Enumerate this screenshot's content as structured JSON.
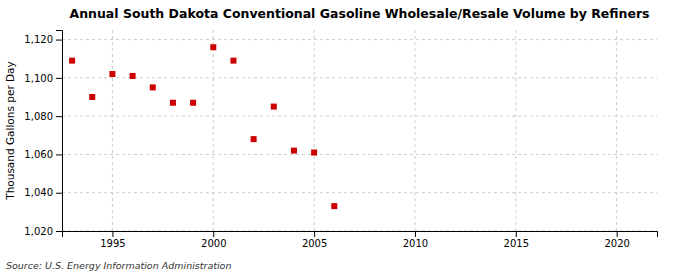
{
  "chart_data": {
    "type": "scatter",
    "title": "Annual South Dakota Conventional Gasoline Wholesale/Resale Volume by Refiners",
    "ylabel": "Thousand Gallons per Day",
    "annotations": [
      "Source: U.S. Energy Information Administration"
    ],
    "x": [
      1993,
      1994,
      1995,
      1996,
      1997,
      1998,
      1999,
      2000,
      2001,
      2002,
      2003,
      2004,
      2005,
      2006
    ],
    "values": [
      1109,
      1090,
      1102,
      1101,
      1095,
      1087,
      1087,
      1116,
      1109,
      1068,
      1085,
      1062,
      1061,
      1033
    ],
    "color": "#cc0000",
    "marker": "square",
    "xlim": [
      1992.5,
      2022
    ],
    "xticks": [
      1995,
      2000,
      2005,
      2010,
      2015,
      2020
    ],
    "ylim": [
      1020,
      1125
    ],
    "yticks": [
      {
        "value": 1020,
        "label": "1,020"
      },
      {
        "value": 1040,
        "label": "1,040"
      },
      {
        "value": 1060,
        "label": "1,060"
      },
      {
        "value": 1080,
        "label": "1,080"
      },
      {
        "value": 1100,
        "label": "1,100"
      },
      {
        "value": 1120,
        "label": "1,120"
      }
    ],
    "grid": true
  }
}
